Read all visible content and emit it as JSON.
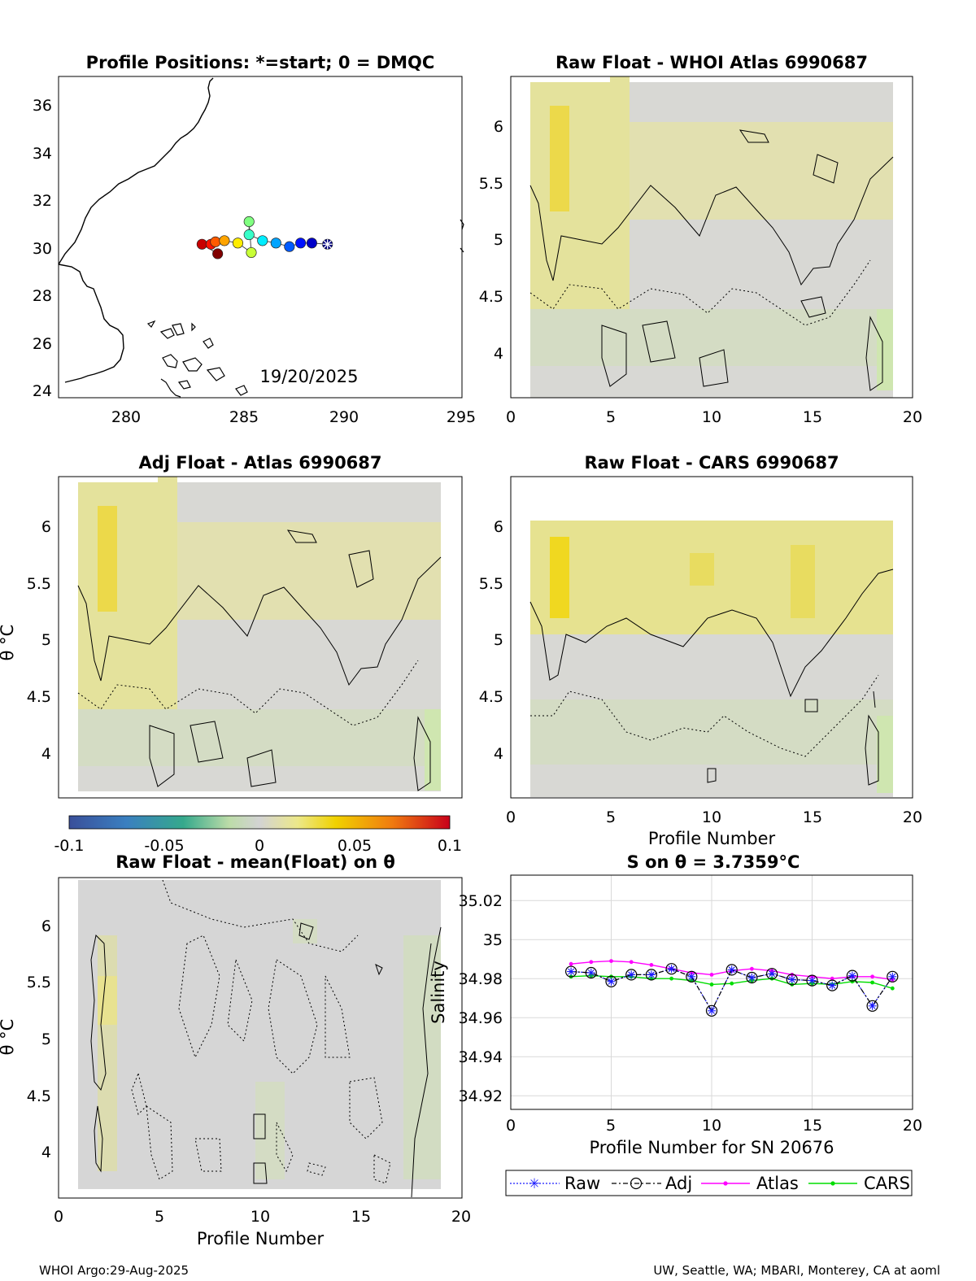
{
  "colors": {
    "grid": "#d9d9d9",
    "field_gray": "#d3d3d3",
    "field_yellow": "#e6e27a",
    "field_green": "#cfe6b0",
    "raw": "#1a1aff",
    "adj": "#000000",
    "atlas": "#ff00ff",
    "cars": "#00dd00"
  },
  "panels": {
    "map": {
      "title": "Profile Positions: *=start; 0 = DMQC",
      "date_label": "19/20/2025",
      "xticks": [
        "280",
        "285",
        "290",
        "295"
      ],
      "yticks": [
        "24",
        "26",
        "28",
        "30",
        "32",
        "34",
        "36"
      ]
    },
    "whoi": {
      "title": "Raw Float - WHOI Atlas  6990687"
    },
    "adj": {
      "title": "Adj Float - Atlas  6990687",
      "ylabel": "θ °C"
    },
    "cars": {
      "title": "Raw Float - CARS  6990687",
      "xlabel": "Profile Number"
    },
    "mean": {
      "title": "Raw Float - mean(Float) on θ",
      "ylabel": "θ °C",
      "xlabel": "Profile Number"
    },
    "salinity": {
      "title": "S on θ = 3.7359°C",
      "xlabel": "Profile Number for SN 20676",
      "ylabel": "Salinity"
    },
    "field_xticks": [
      "0",
      "5",
      "10",
      "15",
      "20"
    ],
    "field_yticks": [
      "4",
      "4.5",
      "5",
      "5.5",
      "6"
    ]
  },
  "colorbar": {
    "ticks": [
      "-0.1",
      "-0.05",
      "0",
      "0.05",
      "0.1"
    ]
  },
  "legend": {
    "raw": "Raw",
    "adj": "Adj",
    "atlas": "Atlas",
    "cars": "CARS"
  },
  "footer": {
    "left": "WHOI Argo:29-Aug-2025",
    "right": "UW, Seattle, WA; MBARI, Monterey, CA at aoml"
  },
  "chart_data": [
    {
      "type": "scatter",
      "title": "Profile Positions: *=start; 0 = DMQC",
      "xlim": [
        277,
        295
      ],
      "ylim": [
        23.7,
        37.2
      ],
      "x": [
        289.0,
        288.3,
        287.8,
        287.3,
        286.7,
        286.1,
        285.5,
        285.5,
        285.6,
        285.0,
        284.4,
        284.0,
        283.8,
        283.4,
        284.1
      ],
      "y": [
        30.15,
        30.2,
        30.2,
        30.05,
        30.2,
        30.3,
        30.55,
        31.1,
        29.8,
        30.2,
        30.3,
        30.25,
        30.15,
        30.15,
        29.75
      ],
      "start_marker": "*",
      "colormap": "jet (profile index)",
      "annotation": "19/20/2025"
    },
    {
      "type": "heatmap",
      "title": "Raw Float - WHOI Atlas  6990687",
      "xlim": [
        0,
        20
      ],
      "ylim": [
        3.6,
        6.4
      ],
      "color_range": [
        -0.1,
        0.1
      ]
    },
    {
      "type": "heatmap",
      "title": "Adj Float - Atlas  6990687",
      "xlim": [
        0,
        20
      ],
      "ylim": [
        3.6,
        6.4
      ],
      "ylabel": "θ °C",
      "color_range": [
        -0.1,
        0.1
      ]
    },
    {
      "type": "heatmap",
      "title": "Raw Float - CARS  6990687",
      "xlim": [
        0,
        20
      ],
      "ylim": [
        3.6,
        6.4
      ],
      "xlabel": "Profile Number",
      "color_range": [
        -0.1,
        0.1
      ]
    },
    {
      "type": "heatmap",
      "title": "Raw Float - mean(Float) on θ",
      "xlim": [
        0,
        20
      ],
      "ylim": [
        3.6,
        6.4
      ],
      "xlabel": "Profile Number",
      "ylabel": "θ °C",
      "color_range": [
        -0.1,
        0.1
      ]
    },
    {
      "type": "line",
      "title": "S on θ = 3.7359°C",
      "xlabel": "Profile Number for SN 20676",
      "ylabel": "Salinity",
      "xlim": [
        0,
        20
      ],
      "ylim": [
        34.913,
        35.033
      ],
      "x": [
        3,
        4,
        5,
        6,
        7,
        8,
        9,
        10,
        11,
        12,
        13,
        14,
        15,
        16,
        17,
        18,
        19
      ],
      "series": [
        {
          "name": "Raw",
          "values": [
            34.9836,
            34.983,
            34.9785,
            34.982,
            34.982,
            34.985,
            34.981,
            34.9635,
            34.9845,
            34.9805,
            34.9825,
            34.9795,
            34.979,
            34.9765,
            34.9815,
            34.966,
            34.981
          ]
        },
        {
          "name": "Adj",
          "values": [
            34.9836,
            34.983,
            34.9785,
            34.982,
            34.982,
            34.985,
            34.981,
            34.9635,
            34.9845,
            34.9805,
            34.9825,
            34.9795,
            34.979,
            34.9765,
            34.9815,
            34.966,
            34.981
          ]
        },
        {
          "name": "Atlas",
          "values": [
            34.9875,
            34.9885,
            34.989,
            34.9885,
            34.987,
            34.985,
            34.983,
            34.982,
            34.984,
            34.985,
            34.984,
            34.982,
            34.981,
            34.98,
            34.981,
            34.981,
            34.9795
          ]
        },
        {
          "name": "CARS",
          "values": [
            34.981,
            34.9815,
            34.981,
            34.981,
            34.98,
            34.98,
            34.979,
            34.977,
            34.9775,
            34.979,
            34.98,
            34.977,
            34.9775,
            34.977,
            34.9785,
            34.978,
            34.975
          ]
        }
      ],
      "yticks": [
        "34.92",
        "34.94",
        "34.96",
        "34.98",
        "35",
        "35.02"
      ]
    }
  ]
}
